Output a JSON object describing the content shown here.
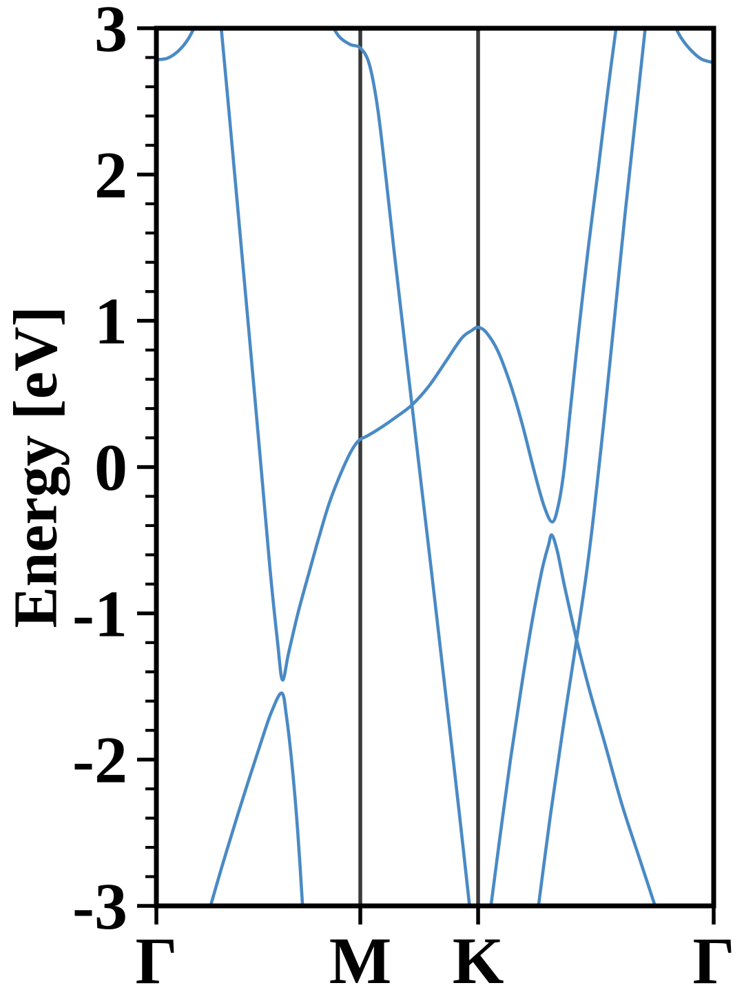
{
  "figure": {
    "background": "#ffffff",
    "band_color": "#4a8ac4",
    "axis_color": "#000000",
    "vline_color": "#3a3a3a",
    "label_color": "#000000"
  },
  "chart_data": {
    "type": "line",
    "title": "",
    "xlabel": "",
    "ylabel": "Energy [eV]",
    "ylim": [
      -3,
      3
    ],
    "grid": false,
    "legend": "none",
    "y_major_ticks": [
      3,
      2,
      1,
      0,
      -1,
      -2,
      -3
    ],
    "y_tick_labels": [
      "3",
      "2",
      "1",
      "0",
      "-1",
      "-2",
      "-3"
    ],
    "y_minor_step": 0.2,
    "x_ticks": [
      {
        "label": "Γ",
        "t": 0.0
      },
      {
        "label": "M",
        "t": 0.3659
      },
      {
        "label": "K",
        "t": 0.5773
      },
      {
        "label": "Γ",
        "t": 1.0
      }
    ],
    "vertical_reference_lines_t": [
      0.3659,
      0.5773
    ],
    "bands": [
      {
        "name": "band-gamma-left-corner",
        "points": [
          [
            0.0,
            2.785
          ],
          [
            0.0198,
            2.795
          ],
          [
            0.0396,
            2.845
          ],
          [
            0.0569,
            2.925
          ],
          [
            0.0754,
            3.06
          ]
        ]
      },
      {
        "name": "band-upper-main",
        "points": [
          [
            0.115,
            3.06
          ],
          [
            0.131,
            2.4
          ],
          [
            0.1496,
            1.62
          ],
          [
            0.1681,
            0.84
          ],
          [
            0.1867,
            0.05
          ],
          [
            0.204,
            -0.7
          ],
          [
            0.2176,
            -1.2
          ],
          [
            0.2262,
            -1.455
          ],
          [
            0.2373,
            -1.27
          ],
          [
            0.2546,
            -0.99
          ],
          [
            0.2744,
            -0.715
          ],
          [
            0.2917,
            -0.48
          ],
          [
            0.309,
            -0.26
          ],
          [
            0.3263,
            -0.085
          ],
          [
            0.3449,
            0.075
          ],
          [
            0.3572,
            0.155
          ],
          [
            0.3659,
            0.19
          ],
          [
            0.3795,
            0.215
          ],
          [
            0.403,
            0.27
          ],
          [
            0.4314,
            0.345
          ],
          [
            0.4586,
            0.425
          ],
          [
            0.4883,
            0.55
          ],
          [
            0.518,
            0.715
          ],
          [
            0.5476,
            0.88
          ],
          [
            0.5662,
            0.935
          ],
          [
            0.5773,
            0.955
          ],
          [
            0.5921,
            0.92
          ],
          [
            0.6131,
            0.79
          ],
          [
            0.6353,
            0.565
          ],
          [
            0.6564,
            0.295
          ],
          [
            0.6774,
            -0.02
          ],
          [
            0.6959,
            -0.27
          ],
          [
            0.7107,
            -0.375
          ],
          [
            0.7219,
            -0.25
          ],
          [
            0.7318,
            -0.01
          ],
          [
            0.7441,
            0.44
          ],
          [
            0.759,
            0.97
          ],
          [
            0.775,
            1.5
          ],
          [
            0.7923,
            2.02
          ],
          [
            0.8096,
            2.56
          ],
          [
            0.827,
            3.06
          ]
        ]
      },
      {
        "name": "band-steep-from-M-top",
        "points": [
          [
            0.309,
            3.06
          ],
          [
            0.3276,
            2.945
          ],
          [
            0.3473,
            2.89
          ],
          [
            0.3659,
            2.865
          ],
          [
            0.382,
            2.755
          ],
          [
            0.3968,
            2.46
          ],
          [
            0.4116,
            1.99
          ],
          [
            0.4265,
            1.48
          ],
          [
            0.4425,
            0.95
          ],
          [
            0.4586,
            0.425
          ],
          [
            0.4759,
            -0.14
          ],
          [
            0.4932,
            -0.7
          ],
          [
            0.5105,
            -1.27
          ],
          [
            0.5278,
            -1.84
          ],
          [
            0.5451,
            -2.42
          ],
          [
            0.5637,
            -3.06
          ]
        ]
      },
      {
        "name": "band-lower-lambda-gamma-M",
        "points": [
          [
            0.0927,
            -3.06
          ],
          [
            0.1162,
            -2.75
          ],
          [
            0.1409,
            -2.44
          ],
          [
            0.1656,
            -2.14
          ],
          [
            0.1879,
            -1.88
          ],
          [
            0.2064,
            -1.675
          ],
          [
            0.225,
            -1.545
          ],
          [
            0.2336,
            -1.71
          ],
          [
            0.2435,
            -2.04
          ],
          [
            0.2534,
            -2.48
          ],
          [
            0.2633,
            -3.06
          ]
        ]
      },
      {
        "name": "band-lower-lambda-K-gamma",
        "points": [
          [
            0.5983,
            -3.06
          ],
          [
            0.6168,
            -2.52
          ],
          [
            0.6353,
            -2.0
          ],
          [
            0.6539,
            -1.53
          ],
          [
            0.6725,
            -1.09
          ],
          [
            0.691,
            -0.72
          ],
          [
            0.7034,
            -0.535
          ],
          [
            0.7096,
            -0.465
          ],
          [
            0.7194,
            -0.575
          ],
          [
            0.733,
            -0.825
          ],
          [
            0.754,
            -1.18
          ],
          [
            0.7775,
            -1.53
          ],
          [
            0.8047,
            -1.89
          ],
          [
            0.8356,
            -2.31
          ],
          [
            0.869,
            -2.7
          ],
          [
            0.8999,
            -3.06
          ]
        ]
      },
      {
        "name": "band-ascending-K-gamma",
        "points": [
          [
            0.6836,
            -3.06
          ],
          [
            0.7071,
            -2.38
          ],
          [
            0.7306,
            -1.76
          ],
          [
            0.754,
            -1.18
          ],
          [
            0.7701,
            -0.77
          ],
          [
            0.7849,
            -0.32
          ],
          [
            0.8035,
            0.33
          ],
          [
            0.822,
            1.02
          ],
          [
            0.8418,
            1.76
          ],
          [
            0.8616,
            2.45
          ],
          [
            0.8789,
            3.06
          ]
        ]
      },
      {
        "name": "band-gamma-right-corner",
        "points": [
          [
            0.9246,
            3.06
          ],
          [
            0.9407,
            2.94
          ],
          [
            0.958,
            2.855
          ],
          [
            0.9778,
            2.79
          ],
          [
            1.0,
            2.765
          ]
        ]
      }
    ]
  }
}
